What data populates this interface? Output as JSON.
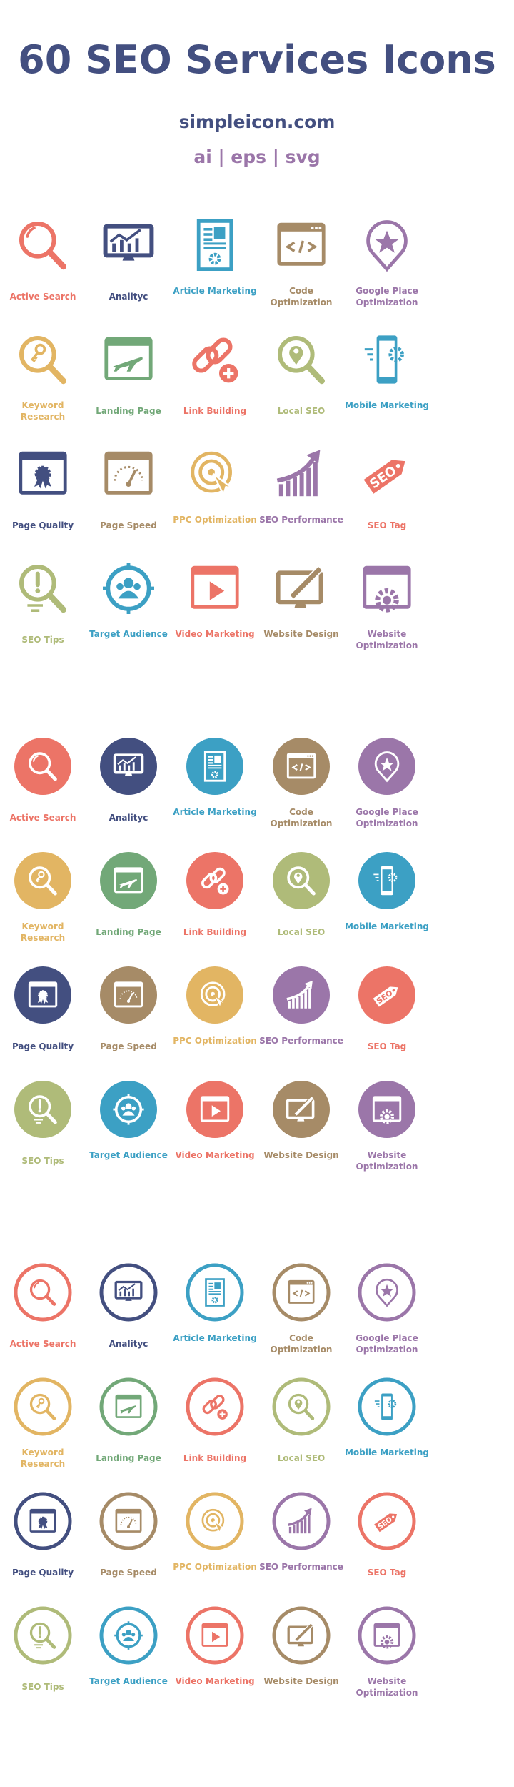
{
  "header": {
    "title": "60 SEO Services Icons",
    "site": "simpleicon.com",
    "formats": "ai | eps | svg"
  },
  "colors": {
    "coral": "#ec7467",
    "navy": "#434f80",
    "blue": "#3ca0c4",
    "brown": "#a68b67",
    "purple": "#9b76a9",
    "yellow": "#e2b563",
    "green": "#72a878",
    "lightgreen": "#afbb79"
  },
  "styles": [
    "flat",
    "filled-circle",
    "outlined-circle"
  ],
  "icons": [
    {
      "label": "Active Search",
      "icon": "search-icon",
      "color": "coral"
    },
    {
      "label": "Analityc",
      "icon": "analytics-monitor-icon",
      "color": "navy"
    },
    {
      "label": "Article Marketing",
      "icon": "article-icon",
      "color": "blue"
    },
    {
      "label": "Code Optimization",
      "icon": "code-icon",
      "color": "brown"
    },
    {
      "label": "Google Place Optimization",
      "icon": "place-pin-icon",
      "color": "purple"
    },
    {
      "label": "Keyword Research",
      "icon": "keyword-search-icon",
      "color": "yellow"
    },
    {
      "label": "Landing Page",
      "icon": "landing-page-icon",
      "color": "green"
    },
    {
      "label": "Link Building",
      "icon": "link-icon",
      "color": "coral"
    },
    {
      "label": "Local SEO",
      "icon": "local-search-icon",
      "color": "lightgreen"
    },
    {
      "label": "Mobile Marketing",
      "icon": "mobile-icon",
      "color": "blue"
    },
    {
      "label": "Page Quality",
      "icon": "page-quality-icon",
      "color": "navy"
    },
    {
      "label": "Page Speed",
      "icon": "page-speed-icon",
      "color": "brown"
    },
    {
      "label": "PPC Optimization",
      "icon": "ppc-target-icon",
      "color": "yellow"
    },
    {
      "label": "SEO Performance",
      "icon": "performance-chart-icon",
      "color": "purple"
    },
    {
      "label": "SEO Tag",
      "icon": "seo-tag-icon",
      "color": "coral"
    },
    {
      "label": "SEO Tips",
      "icon": "tips-search-icon",
      "color": "lightgreen"
    },
    {
      "label": "Target Audience",
      "icon": "target-audience-icon",
      "color": "blue"
    },
    {
      "label": "Video Marketing",
      "icon": "video-icon",
      "color": "coral"
    },
    {
      "label": "Website Design",
      "icon": "website-design-icon",
      "color": "brown"
    },
    {
      "label": "Website Optimization",
      "icon": "website-optimization-icon",
      "color": "purple"
    }
  ],
  "tag_text": "SEO",
  "code_text": "</>"
}
